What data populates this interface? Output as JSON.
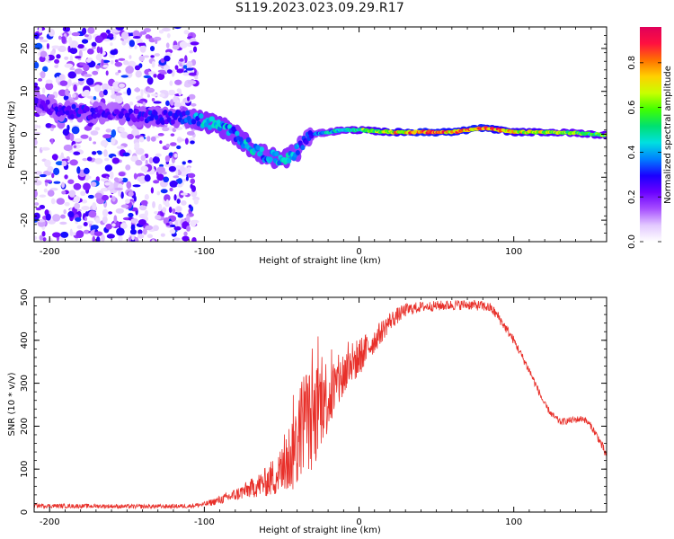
{
  "title": "S119.2023.023.09.29.R17",
  "colorbar": {
    "label": "Normalized spectral amplitude",
    "ticks": [
      "0.0",
      "0.2",
      "0.4",
      "0.6",
      "0.8"
    ],
    "tick_values": [
      0.0,
      0.2,
      0.4,
      0.6,
      0.8
    ],
    "range": [
      0.0,
      0.96
    ],
    "colormap": [
      "#ffffff",
      "#e2c8ff",
      "#a64dff",
      "#6a00ff",
      "#1a00ff",
      "#0080ff",
      "#00e0e0",
      "#00e070",
      "#40ff00",
      "#c8ff00",
      "#ffd000",
      "#ff7000",
      "#ff1040",
      "#e0005a"
    ]
  },
  "chart_data": [
    {
      "type": "heatmap",
      "title": "",
      "xlabel": "Height of straight line (km)",
      "ylabel": "Frequency (Hz)",
      "xlim": [
        -210,
        160
      ],
      "ylim": [
        -25,
        25
      ],
      "xticks": [
        -200,
        -100,
        0,
        100
      ],
      "yticks": [
        -20,
        -10,
        0,
        10,
        20
      ],
      "grid": false,
      "description_points": {
        "noise_region_x": [
          -210,
          -105
        ],
        "ridge": {
          "x": [
            -210,
            -200,
            -180,
            -160,
            -140,
            -120,
            -110,
            -100,
            -90,
            -80,
            -70,
            -60,
            -50,
            -40,
            -35,
            -30,
            -20,
            -10,
            0,
            20,
            40,
            60,
            80,
            100,
            120,
            140,
            160
          ],
          "y": [
            8,
            6,
            5,
            5,
            4,
            4,
            4,
            3,
            2,
            0,
            -3,
            -5,
            -6,
            -4,
            -1,
            0,
            0.5,
            1,
            1,
            0.5,
            0.5,
            0.5,
            1.5,
            0.5,
            0.5,
            0.3,
            -0.2
          ],
          "amplitude": [
            0.25,
            0.25,
            0.3,
            0.25,
            0.3,
            0.3,
            0.35,
            0.45,
            0.45,
            0.4,
            0.45,
            0.4,
            0.45,
            0.4,
            0.3,
            0.35,
            0.45,
            0.5,
            0.6,
            0.75,
            0.9,
            0.85,
            0.9,
            0.75,
            0.7,
            0.6,
            0.6
          ]
        }
      }
    },
    {
      "type": "line",
      "title": "",
      "xlabel": "Height of straight line (km)",
      "ylabel": "SNR (10 * v/v)",
      "xlim": [
        -210,
        160
      ],
      "ylim": [
        0,
        500
      ],
      "xticks": [
        -200,
        -100,
        0,
        100
      ],
      "yticks": [
        0,
        100,
        200,
        300,
        400,
        500
      ],
      "grid": false,
      "series_color": "#e8302a",
      "series": [
        {
          "x": [
            -210,
            -190,
            -170,
            -150,
            -130,
            -110,
            -100,
            -90,
            -80,
            -70,
            -60,
            -50,
            -40,
            -35,
            -30,
            -25,
            -20,
            -15,
            -10,
            -5,
            0,
            10,
            20,
            30,
            40,
            50,
            60,
            70,
            80,
            85,
            90,
            100,
            110,
            120,
            125,
            130,
            140,
            145,
            150,
            155,
            160
          ],
          "values": [
            15,
            14,
            14,
            13,
            13,
            14,
            18,
            28,
            40,
            55,
            70,
            95,
            160,
            230,
            200,
            260,
            270,
            290,
            320,
            345,
            360,
            400,
            445,
            470,
            478,
            480,
            482,
            483,
            480,
            475,
            455,
            400,
            330,
            250,
            225,
            210,
            215,
            218,
            200,
            170,
            130
          ],
          "noise_amplitude": [
            5,
            5,
            5,
            5,
            5,
            5,
            6,
            10,
            15,
            22,
            35,
            60,
            110,
            120,
            120,
            110,
            90,
            70,
            60,
            50,
            45,
            30,
            22,
            16,
            12,
            12,
            12,
            12,
            12,
            12,
            12,
            10,
            10,
            8,
            8,
            8,
            8,
            8,
            8,
            10,
            12
          ]
        }
      ]
    }
  ]
}
